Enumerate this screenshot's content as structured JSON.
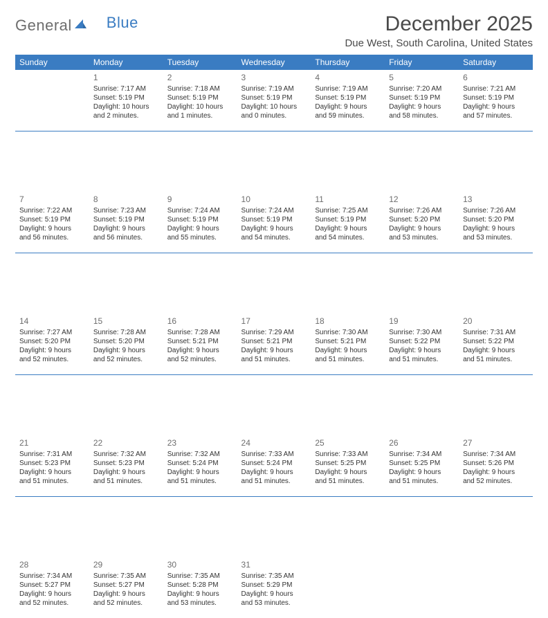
{
  "brand": {
    "word1": "General",
    "word2": "Blue"
  },
  "title": "December 2025",
  "subtitle": "Due West, South Carolina, United States",
  "colors": {
    "header_bg": "#3a7cc2",
    "header_fg": "#ffffff",
    "rule": "#3a7cc2",
    "text": "#333333",
    "muted": "#6d6d6d",
    "brand_blue": "#3a7cc2",
    "brand_gray": "#6d6d6d",
    "bg": "#ffffff"
  },
  "day_labels": [
    "Sunday",
    "Monday",
    "Tuesday",
    "Wednesday",
    "Thursday",
    "Friday",
    "Saturday"
  ],
  "weeks": [
    [
      {
        "n": "",
        "lines": []
      },
      {
        "n": "1",
        "lines": [
          "Sunrise: 7:17 AM",
          "Sunset: 5:19 PM",
          "Daylight: 10 hours",
          "and 2 minutes."
        ]
      },
      {
        "n": "2",
        "lines": [
          "Sunrise: 7:18 AM",
          "Sunset: 5:19 PM",
          "Daylight: 10 hours",
          "and 1 minutes."
        ]
      },
      {
        "n": "3",
        "lines": [
          "Sunrise: 7:19 AM",
          "Sunset: 5:19 PM",
          "Daylight: 10 hours",
          "and 0 minutes."
        ]
      },
      {
        "n": "4",
        "lines": [
          "Sunrise: 7:19 AM",
          "Sunset: 5:19 PM",
          "Daylight: 9 hours",
          "and 59 minutes."
        ]
      },
      {
        "n": "5",
        "lines": [
          "Sunrise: 7:20 AM",
          "Sunset: 5:19 PM",
          "Daylight: 9 hours",
          "and 58 minutes."
        ]
      },
      {
        "n": "6",
        "lines": [
          "Sunrise: 7:21 AM",
          "Sunset: 5:19 PM",
          "Daylight: 9 hours",
          "and 57 minutes."
        ]
      }
    ],
    [
      {
        "n": "7",
        "lines": [
          "Sunrise: 7:22 AM",
          "Sunset: 5:19 PM",
          "Daylight: 9 hours",
          "and 56 minutes."
        ]
      },
      {
        "n": "8",
        "lines": [
          "Sunrise: 7:23 AM",
          "Sunset: 5:19 PM",
          "Daylight: 9 hours",
          "and 56 minutes."
        ]
      },
      {
        "n": "9",
        "lines": [
          "Sunrise: 7:24 AM",
          "Sunset: 5:19 PM",
          "Daylight: 9 hours",
          "and 55 minutes."
        ]
      },
      {
        "n": "10",
        "lines": [
          "Sunrise: 7:24 AM",
          "Sunset: 5:19 PM",
          "Daylight: 9 hours",
          "and 54 minutes."
        ]
      },
      {
        "n": "11",
        "lines": [
          "Sunrise: 7:25 AM",
          "Sunset: 5:19 PM",
          "Daylight: 9 hours",
          "and 54 minutes."
        ]
      },
      {
        "n": "12",
        "lines": [
          "Sunrise: 7:26 AM",
          "Sunset: 5:20 PM",
          "Daylight: 9 hours",
          "and 53 minutes."
        ]
      },
      {
        "n": "13",
        "lines": [
          "Sunrise: 7:26 AM",
          "Sunset: 5:20 PM",
          "Daylight: 9 hours",
          "and 53 minutes."
        ]
      }
    ],
    [
      {
        "n": "14",
        "lines": [
          "Sunrise: 7:27 AM",
          "Sunset: 5:20 PM",
          "Daylight: 9 hours",
          "and 52 minutes."
        ]
      },
      {
        "n": "15",
        "lines": [
          "Sunrise: 7:28 AM",
          "Sunset: 5:20 PM",
          "Daylight: 9 hours",
          "and 52 minutes."
        ]
      },
      {
        "n": "16",
        "lines": [
          "Sunrise: 7:28 AM",
          "Sunset: 5:21 PM",
          "Daylight: 9 hours",
          "and 52 minutes."
        ]
      },
      {
        "n": "17",
        "lines": [
          "Sunrise: 7:29 AM",
          "Sunset: 5:21 PM",
          "Daylight: 9 hours",
          "and 51 minutes."
        ]
      },
      {
        "n": "18",
        "lines": [
          "Sunrise: 7:30 AM",
          "Sunset: 5:21 PM",
          "Daylight: 9 hours",
          "and 51 minutes."
        ]
      },
      {
        "n": "19",
        "lines": [
          "Sunrise: 7:30 AM",
          "Sunset: 5:22 PM",
          "Daylight: 9 hours",
          "and 51 minutes."
        ]
      },
      {
        "n": "20",
        "lines": [
          "Sunrise: 7:31 AM",
          "Sunset: 5:22 PM",
          "Daylight: 9 hours",
          "and 51 minutes."
        ]
      }
    ],
    [
      {
        "n": "21",
        "lines": [
          "Sunrise: 7:31 AM",
          "Sunset: 5:23 PM",
          "Daylight: 9 hours",
          "and 51 minutes."
        ]
      },
      {
        "n": "22",
        "lines": [
          "Sunrise: 7:32 AM",
          "Sunset: 5:23 PM",
          "Daylight: 9 hours",
          "and 51 minutes."
        ]
      },
      {
        "n": "23",
        "lines": [
          "Sunrise: 7:32 AM",
          "Sunset: 5:24 PM",
          "Daylight: 9 hours",
          "and 51 minutes."
        ]
      },
      {
        "n": "24",
        "lines": [
          "Sunrise: 7:33 AM",
          "Sunset: 5:24 PM",
          "Daylight: 9 hours",
          "and 51 minutes."
        ]
      },
      {
        "n": "25",
        "lines": [
          "Sunrise: 7:33 AM",
          "Sunset: 5:25 PM",
          "Daylight: 9 hours",
          "and 51 minutes."
        ]
      },
      {
        "n": "26",
        "lines": [
          "Sunrise: 7:34 AM",
          "Sunset: 5:25 PM",
          "Daylight: 9 hours",
          "and 51 minutes."
        ]
      },
      {
        "n": "27",
        "lines": [
          "Sunrise: 7:34 AM",
          "Sunset: 5:26 PM",
          "Daylight: 9 hours",
          "and 52 minutes."
        ]
      }
    ],
    [
      {
        "n": "28",
        "lines": [
          "Sunrise: 7:34 AM",
          "Sunset: 5:27 PM",
          "Daylight: 9 hours",
          "and 52 minutes."
        ]
      },
      {
        "n": "29",
        "lines": [
          "Sunrise: 7:35 AM",
          "Sunset: 5:27 PM",
          "Daylight: 9 hours",
          "and 52 minutes."
        ]
      },
      {
        "n": "30",
        "lines": [
          "Sunrise: 7:35 AM",
          "Sunset: 5:28 PM",
          "Daylight: 9 hours",
          "and 53 minutes."
        ]
      },
      {
        "n": "31",
        "lines": [
          "Sunrise: 7:35 AM",
          "Sunset: 5:29 PM",
          "Daylight: 9 hours",
          "and 53 minutes."
        ]
      },
      {
        "n": "",
        "lines": []
      },
      {
        "n": "",
        "lines": []
      },
      {
        "n": "",
        "lines": []
      }
    ]
  ]
}
